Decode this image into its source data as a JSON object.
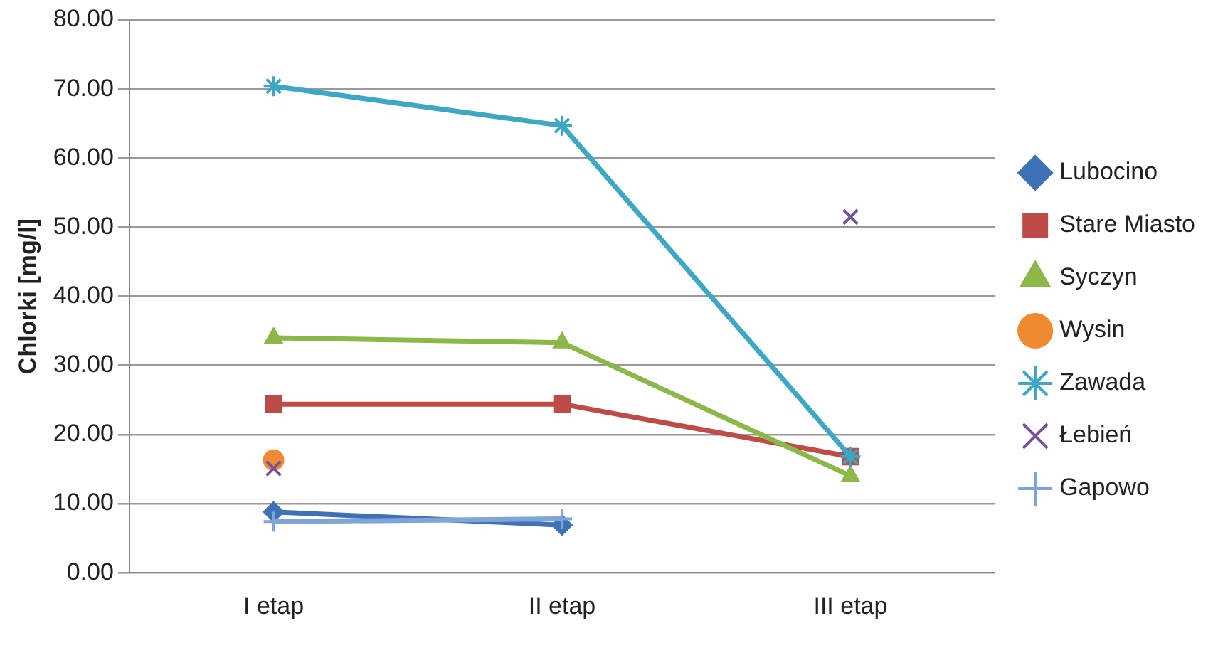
{
  "chart_data": {
    "type": "line",
    "ylabel": "Chlorki [mg/l]",
    "categories": [
      "I etap",
      "II etap",
      "III etap"
    ],
    "series": [
      {
        "name": "Lubocino",
        "color": "#3f72b5",
        "marker": "diamond",
        "values": [
          8.8,
          6.9,
          null
        ]
      },
      {
        "name": "Stare Miasto",
        "color": "#be4b48",
        "marker": "square",
        "values": [
          24.4,
          24.4,
          16.8
        ]
      },
      {
        "name": "Syczyn",
        "color": "#8cb84a",
        "marker": "triangle",
        "values": [
          34.0,
          33.3,
          14.0
        ]
      },
      {
        "name": "Wysin",
        "color": "#f08a30",
        "marker": "circle",
        "values": [
          16.3,
          null,
          null
        ]
      },
      {
        "name": "Zawada",
        "color": "#3ea8c4",
        "marker": "cross",
        "values": [
          70.4,
          64.7,
          16.8
        ]
      },
      {
        "name": "Łebień",
        "color": "#7451a0",
        "marker": "x",
        "values": [
          15.1,
          null,
          51.5
        ]
      },
      {
        "name": "Gapowo",
        "color": "#7fa4d8",
        "marker": "plus",
        "values": [
          7.4,
          7.8,
          null
        ]
      }
    ],
    "ylim": [
      0,
      80
    ],
    "yticks": [
      {
        "value": 0,
        "label": "0.00"
      },
      {
        "value": 10,
        "label": "10.00"
      },
      {
        "value": 20,
        "label": "20.00"
      },
      {
        "value": 30,
        "label": "30.00"
      },
      {
        "value": 40,
        "label": "40.00"
      },
      {
        "value": 50,
        "label": "50.00"
      },
      {
        "value": 60,
        "label": "60.00"
      },
      {
        "value": 70,
        "label": "70.00"
      },
      {
        "value": 80,
        "label": "80.00"
      }
    ],
    "grid": "y",
    "legend": "right"
  }
}
